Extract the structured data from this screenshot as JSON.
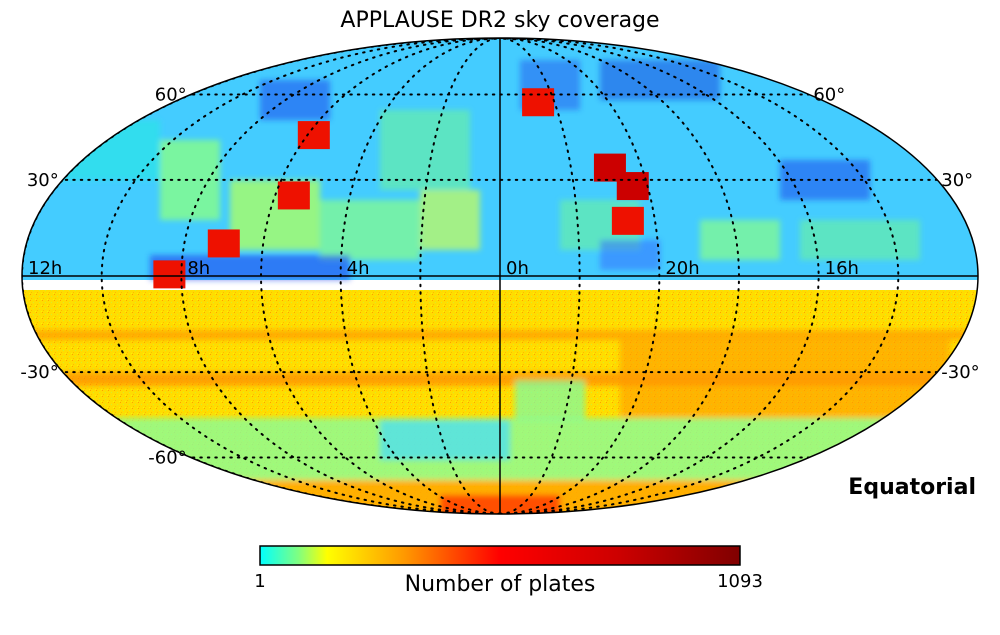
{
  "chart_data": {
    "type": "heatmap",
    "projection": "mollweide",
    "title": "APPLAUSE DR2 sky coverage",
    "coordinate_system": "Equatorial",
    "ra_tick_labels": [
      {
        "ra_hours": 12,
        "label": "12h"
      },
      {
        "ra_hours": 8,
        "label": "8h"
      },
      {
        "ra_hours": 4,
        "label": "4h"
      },
      {
        "ra_hours": 0,
        "label": "0h"
      },
      {
        "ra_hours": 20,
        "label": "20h"
      },
      {
        "ra_hours": 16,
        "label": "16h"
      }
    ],
    "dec_tick_labels": [
      {
        "dec": 60,
        "label": "60°",
        "sides": [
          "left",
          "right"
        ]
      },
      {
        "dec": 30,
        "label": "30°",
        "sides": [
          "left",
          "right"
        ]
      },
      {
        "dec": -30,
        "label": "-30°",
        "sides": [
          "left",
          "right"
        ]
      },
      {
        "dec": -60,
        "label": "-60°",
        "sides": [
          "left"
        ]
      }
    ],
    "colorbar": {
      "label": "Number of plates",
      "min": 1,
      "max": 1093,
      "min_label": "1",
      "max_label": "1093",
      "colormap": "jet"
    },
    "hotspots": [
      {
        "ra_hours": 8.3,
        "dec": 0.5,
        "value": 700
      },
      {
        "ra_hours": 5.8,
        "dec": 45,
        "value": 650
      },
      {
        "ra_hours": 5.5,
        "dec": 25,
        "value": 600
      },
      {
        "ra_hours": 7.0,
        "dec": 10,
        "value": 600
      },
      {
        "ra_hours": 22.6,
        "dec": 57,
        "value": 700
      },
      {
        "ra_hours": 20.4,
        "dec": 28,
        "value": 900
      },
      {
        "ra_hours": 20.9,
        "dec": 34,
        "value": 800
      },
      {
        "ra_hours": 20.7,
        "dec": 17,
        "value": 550
      }
    ]
  }
}
